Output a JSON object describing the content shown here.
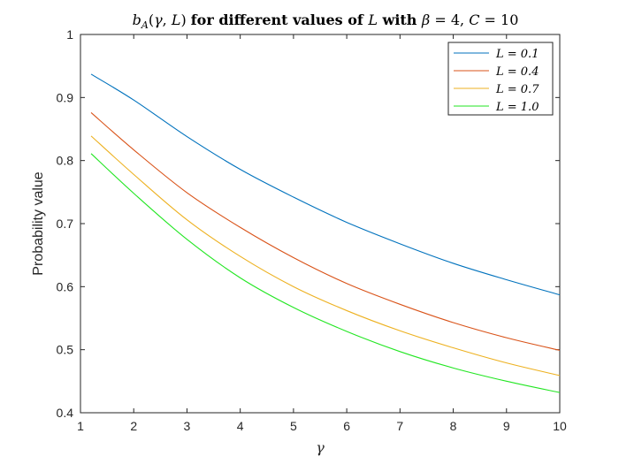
{
  "chart_data": {
    "type": "line",
    "title": "b_A(γ, L) for different values of L with β = 4, C = 10",
    "xlabel": "γ",
    "ylabel": "Probability value",
    "xlim": [
      1,
      10
    ],
    "ylim": [
      0.4,
      1
    ],
    "xticks": [
      1,
      2,
      3,
      4,
      5,
      6,
      7,
      8,
      9,
      10
    ],
    "yticks": [
      0.4,
      0.5,
      0.6,
      0.7,
      0.8,
      0.9,
      1
    ],
    "grid": false,
    "legend_position": "top-right",
    "x": [
      1.2,
      2,
      3,
      4,
      5,
      6,
      7,
      8,
      9,
      10
    ],
    "series": [
      {
        "name": "L = 0.1",
        "color": "#0072BD",
        "values": [
          0.937,
          0.896,
          0.838,
          0.786,
          0.742,
          0.702,
          0.668,
          0.637,
          0.611,
          0.587
        ]
      },
      {
        "name": "L = 0.4",
        "color": "#D95319",
        "values": [
          0.876,
          0.817,
          0.749,
          0.694,
          0.646,
          0.605,
          0.572,
          0.543,
          0.519,
          0.499
        ]
      },
      {
        "name": "L = 0.7",
        "color": "#EDB120",
        "values": [
          0.839,
          0.778,
          0.706,
          0.648,
          0.6,
          0.562,
          0.53,
          0.503,
          0.479,
          0.459
        ]
      },
      {
        "name": "L = 1.0",
        "color": "#22E622",
        "values": [
          0.811,
          0.748,
          0.675,
          0.614,
          0.567,
          0.529,
          0.497,
          0.471,
          0.45,
          0.432
        ]
      }
    ]
  }
}
